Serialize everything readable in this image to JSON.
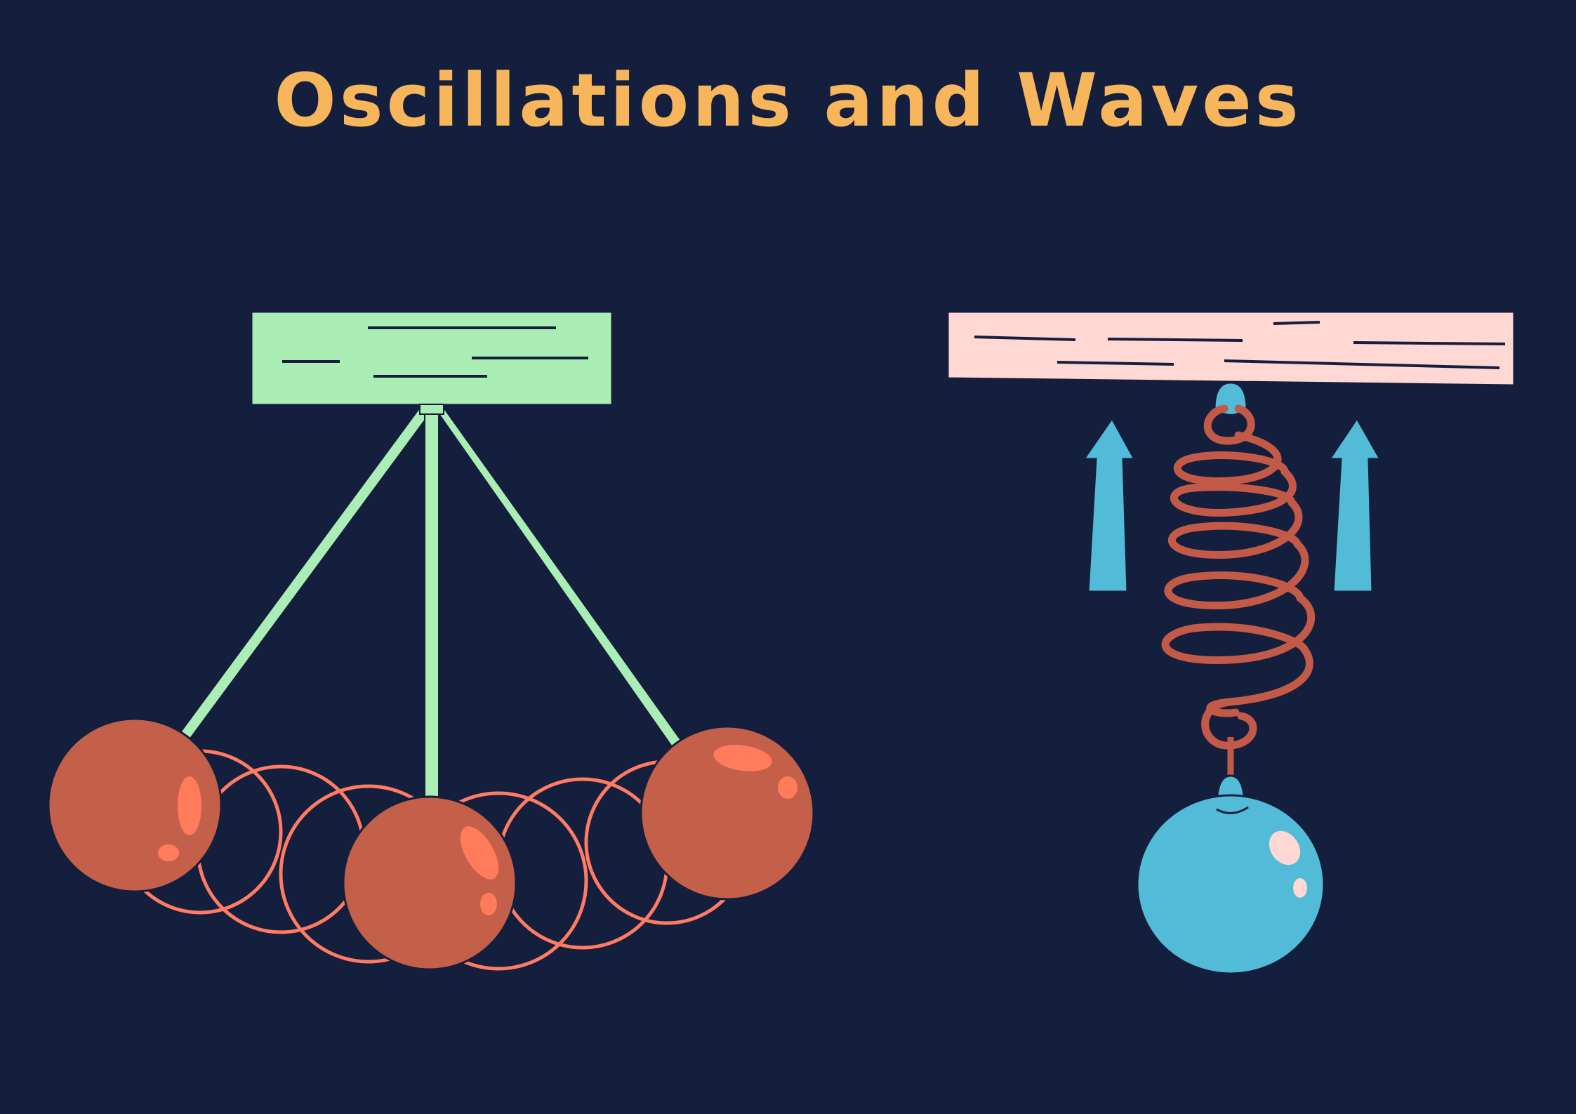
{
  "title": "Oscillations and Waves",
  "colors": {
    "background": "#141f3d",
    "title": "#f7b65c",
    "pendulum_mount": "#abeeb5",
    "pendulum_string": "#abeeb5",
    "pendulum_bob": "#c4604a",
    "pendulum_highlight": "#ff7b5a",
    "motion_trail": "#ff7b63",
    "spring_mount": "#ffd7d3",
    "spring_coil": "#c35a48",
    "spring_bob": "#52bbd8",
    "arrows": "#52bbd8",
    "outline": "#141f3d"
  },
  "figures": {
    "pendulum": {
      "name": "swinging-pendulum",
      "bob_count": 3,
      "trail_ring_count": 6
    },
    "spring": {
      "name": "mass-on-spring",
      "coil_count": 5,
      "arrow_count": 2,
      "arrow_direction": "up"
    }
  }
}
